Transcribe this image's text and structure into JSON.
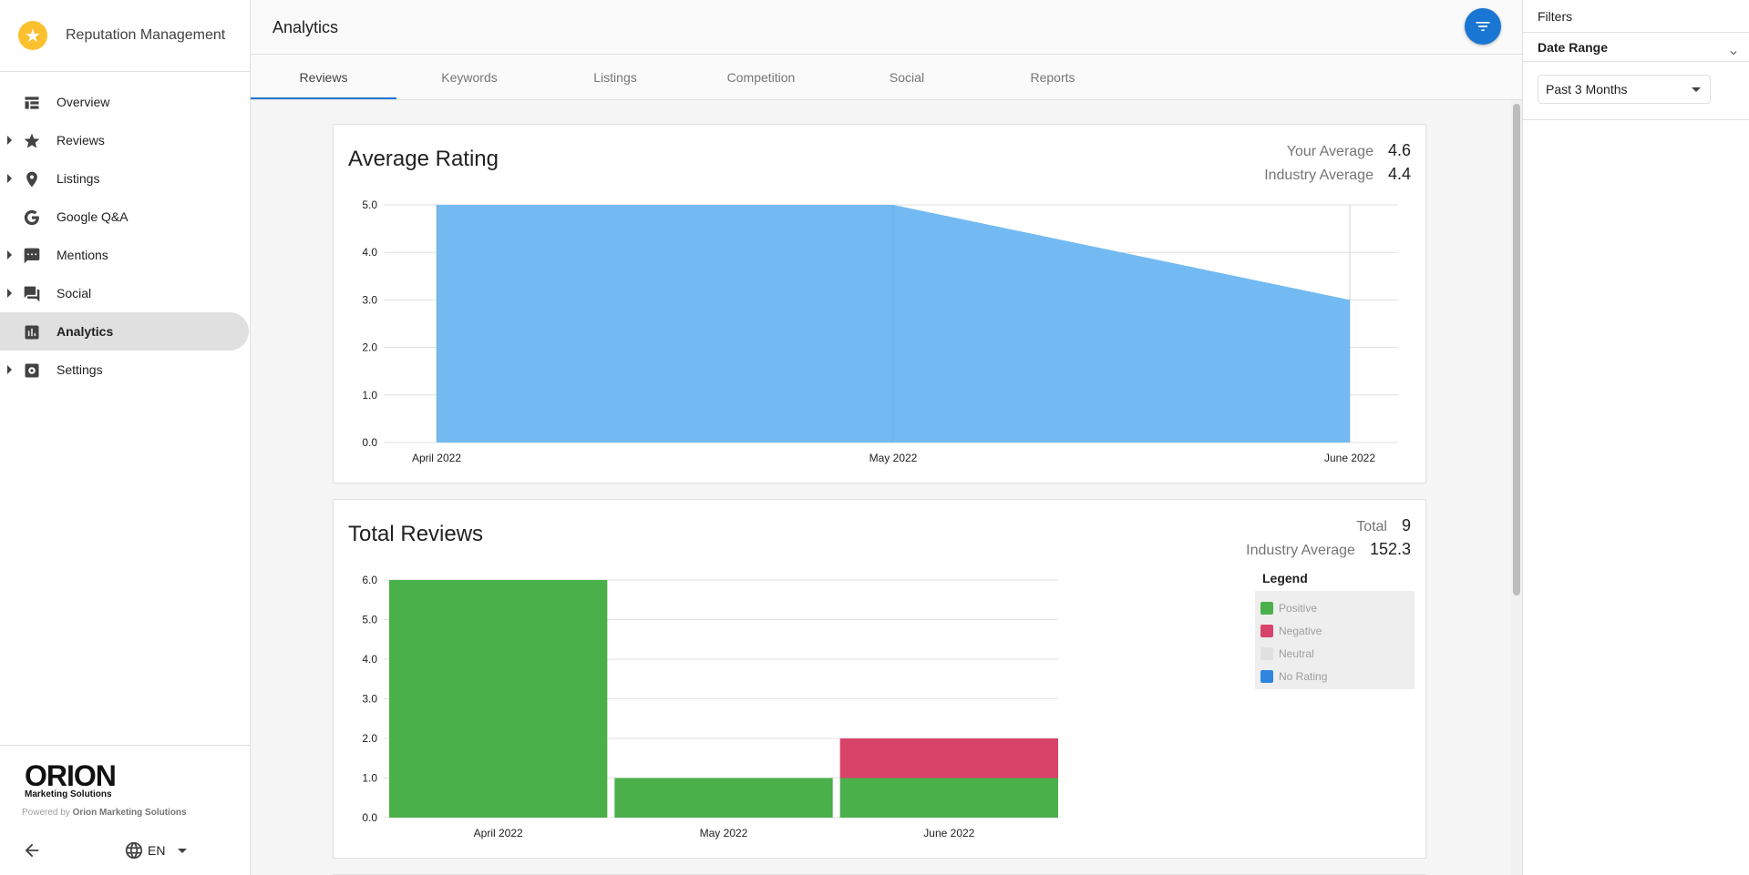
{
  "app": {
    "name": "Reputation Management",
    "logo_icon": "star-icon",
    "brand_color": "#fbc02d"
  },
  "sidebar": {
    "items": [
      {
        "label": "Overview",
        "icon": "dashboard-icon",
        "expandable": false,
        "active": false
      },
      {
        "label": "Reviews",
        "icon": "star-icon",
        "expandable": true,
        "active": false
      },
      {
        "label": "Listings",
        "icon": "location-pin-icon",
        "expandable": true,
        "active": false
      },
      {
        "label": "Google Q&A",
        "icon": "google-icon",
        "expandable": false,
        "active": false
      },
      {
        "label": "Mentions",
        "icon": "comment-icon",
        "expandable": true,
        "active": false
      },
      {
        "label": "Social",
        "icon": "forum-icon",
        "expandable": true,
        "active": false
      },
      {
        "label": "Analytics",
        "icon": "bar-chart-icon",
        "expandable": false,
        "active": true
      },
      {
        "label": "Settings",
        "icon": "settings-icon",
        "expandable": true,
        "active": false
      }
    ],
    "footer": {
      "logo_word": "ORION",
      "logo_sub": "Marketing Solutions",
      "powered_prefix": "Powered by ",
      "powered_name": "Orion Marketing Solutions",
      "language": "EN"
    }
  },
  "header": {
    "title": "Analytics",
    "filter_button_icon": "filter-icon",
    "accent": "#1976d2"
  },
  "tabs": [
    {
      "label": "Reviews",
      "active": true
    },
    {
      "label": "Keywords",
      "active": false
    },
    {
      "label": "Listings",
      "active": false
    },
    {
      "label": "Competition",
      "active": false
    },
    {
      "label": "Social",
      "active": false
    },
    {
      "label": "Reports",
      "active": false
    }
  ],
  "cards": {
    "average_rating": {
      "title": "Average Rating",
      "stats": [
        {
          "label": "Your Average",
          "value": "4.6"
        },
        {
          "label": "Industry Average",
          "value": "4.4"
        }
      ]
    },
    "total_reviews": {
      "title": "Total Reviews",
      "stats": [
        {
          "label": "Total",
          "value": "9"
        },
        {
          "label": "Industry Average",
          "value": "152.3"
        }
      ],
      "legend_title": "Legend"
    }
  },
  "chart_data": [
    {
      "type": "area",
      "title": "Average Rating",
      "categories": [
        "April 2022",
        "May 2022",
        "June 2022"
      ],
      "values": [
        5.0,
        5.0,
        3.0
      ],
      "ylim": [
        0,
        5
      ],
      "yticks": [
        "0.0",
        "1.0",
        "2.0",
        "3.0",
        "4.0",
        "5.0"
      ],
      "grid": true,
      "color": "#6cb6f1"
    },
    {
      "type": "bar",
      "stacked": true,
      "title": "Total Reviews",
      "categories": [
        "April 2022",
        "May 2022",
        "June 2022"
      ],
      "series": [
        {
          "name": "Positive",
          "values": [
            6,
            1,
            1
          ],
          "color": "#4ab04a"
        },
        {
          "name": "Negative",
          "values": [
            0,
            0,
            1
          ],
          "color": "#d9436a"
        },
        {
          "name": "Neutral",
          "values": [
            0,
            0,
            0
          ],
          "color": "#e0e0e0"
        },
        {
          "name": "No Rating",
          "values": [
            0,
            0,
            0
          ],
          "color": "#2f86e0"
        }
      ],
      "ylim": [
        0,
        6
      ],
      "yticks": [
        "0.0",
        "1.0",
        "2.0",
        "3.0",
        "4.0",
        "5.0",
        "6.0"
      ],
      "grid": true,
      "legend_position": "right"
    }
  ],
  "filters": {
    "title": "Filters",
    "sections": [
      {
        "label": "Date Range",
        "value": "Past 3 Months"
      }
    ]
  }
}
